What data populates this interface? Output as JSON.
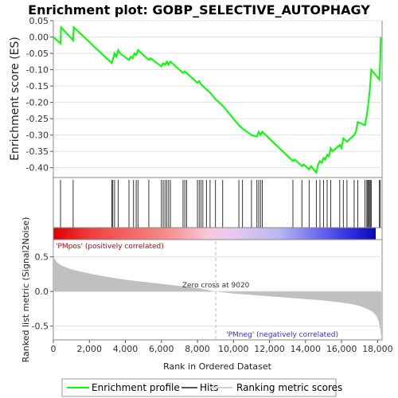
{
  "chart_data": {
    "type": "line",
    "title": "Enrichment plot: GOBP_SELECTIVE_AUTOPHAGY",
    "xlabel": "Rank in Ordered Dataset",
    "es_panel": {
      "ylabel": "Enrichment score (ES)",
      "ylim": [
        -0.43,
        0.05
      ],
      "yticks": [
        0.05,
        0.0,
        -0.05,
        -0.1,
        -0.15,
        -0.2,
        -0.25,
        -0.3,
        -0.35,
        -0.4
      ],
      "ytick_labels": [
        "0.05",
        "0.00",
        "-0.05",
        "-0.10",
        "-0.15",
        "-0.20",
        "-0.25",
        "-0.30",
        "-0.35",
        "-0.40"
      ],
      "series": [
        {
          "name": "Enrichment profile",
          "color": "#00ff00",
          "x": [
            0,
            400,
            430,
            1100,
            1130,
            3250,
            3300,
            3400,
            3500,
            3600,
            3700,
            4200,
            4300,
            4400,
            4500,
            4600,
            4700,
            5300,
            5400,
            6000,
            6100,
            6200,
            6300,
            6400,
            6500,
            7200,
            7300,
            7400,
            8000,
            8100,
            8200,
            8300,
            8500,
            8700,
            9000,
            9400,
            10300,
            10500,
            11000,
            11300,
            11400,
            11500,
            11600,
            13300,
            13400,
            13800,
            13900,
            14200,
            14300,
            14600,
            14700,
            14800,
            14900,
            15000,
            15100,
            15200,
            15300,
            15400,
            15500,
            15900,
            16000,
            16100,
            16300,
            16700,
            16800,
            16900,
            17300,
            17400,
            17450,
            17500,
            17550,
            17600,
            17650,
            18100,
            18150,
            18180
          ],
          "y": [
            0.0,
            -0.02,
            0.03,
            -0.01,
            0.03,
            -0.08,
            -0.07,
            -0.05,
            -0.06,
            -0.04,
            -0.05,
            -0.07,
            -0.06,
            -0.065,
            -0.05,
            -0.055,
            -0.04,
            -0.07,
            -0.065,
            -0.09,
            -0.08,
            -0.085,
            -0.075,
            -0.085,
            -0.075,
            -0.11,
            -0.105,
            -0.11,
            -0.14,
            -0.135,
            -0.145,
            -0.15,
            -0.16,
            -0.17,
            -0.19,
            -0.21,
            -0.27,
            -0.28,
            -0.3,
            -0.305,
            -0.29,
            -0.3,
            -0.29,
            -0.38,
            -0.375,
            -0.395,
            -0.39,
            -0.405,
            -0.395,
            -0.415,
            -0.39,
            -0.38,
            -0.385,
            -0.37,
            -0.375,
            -0.36,
            -0.365,
            -0.34,
            -0.35,
            -0.33,
            -0.34,
            -0.31,
            -0.32,
            -0.3,
            -0.29,
            -0.26,
            -0.27,
            -0.24,
            -0.22,
            -0.2,
            -0.17,
            -0.14,
            -0.1,
            -0.13,
            -0.07,
            0.0
          ]
        }
      ]
    },
    "hits": {
      "name": "Hits",
      "positions": [
        400,
        1100,
        3250,
        3300,
        3400,
        3600,
        4200,
        4450,
        4600,
        4700,
        5300,
        6000,
        6100,
        6200,
        6300,
        6400,
        6500,
        7200,
        7300,
        7400,
        8000,
        8100,
        8200,
        8300,
        8500,
        8700,
        9000,
        9400,
        10300,
        10500,
        11000,
        11300,
        11400,
        11500,
        11600,
        13300,
        13800,
        14200,
        14600,
        14800,
        15000,
        15200,
        15400,
        15900,
        16100,
        16300,
        16700,
        16900,
        17300,
        17400,
        17450,
        17500,
        17550,
        17600,
        17650,
        18100,
        18150
      ]
    },
    "ranked_metric": {
      "name": "Ranking metric scores",
      "ylabel": "Ranked list metric (Signal2Noise)",
      "ylim": [
        -0.7,
        0.75
      ],
      "yticks": [
        0.5,
        0.0,
        -0.5
      ],
      "ytick_labels": [
        "0.5",
        "0.0",
        "-0.5"
      ],
      "x": [
        0,
        50,
        200,
        500,
        1000,
        2000,
        3000,
        4000,
        5000,
        6000,
        7000,
        8000,
        9020,
        10000,
        11000,
        12000,
        13000,
        14000,
        15000,
        16000,
        16500,
        17000,
        17400,
        17700,
        17900,
        18050,
        18150,
        18200
      ],
      "y": [
        0.65,
        0.48,
        0.42,
        0.37,
        0.32,
        0.26,
        0.21,
        0.17,
        0.14,
        0.11,
        0.08,
        0.05,
        0.0,
        -0.03,
        -0.05,
        -0.07,
        -0.09,
        -0.11,
        -0.13,
        -0.16,
        -0.18,
        -0.21,
        -0.25,
        -0.29,
        -0.34,
        -0.42,
        -0.55,
        -0.65
      ],
      "zero_cross": 9020,
      "zero_cross_label": "Zero cross at 9020",
      "pos_label": "'PMpos' (positively correlated)",
      "neg_label": "'PMneg' (negatively correlated)"
    },
    "xlim": [
      0,
      18250
    ],
    "xticks": [
      0,
      2000,
      4000,
      6000,
      8000,
      10000,
      12000,
      14000,
      16000,
      18000
    ],
    "xtick_labels": [
      "0",
      "2,000",
      "4,000",
      "6,000",
      "8,000",
      "10,000",
      "12,000",
      "14,000",
      "16,000",
      "18,000"
    ],
    "legend": {
      "placement": "bottom",
      "entries": [
        {
          "label": "Enrichment profile",
          "color": "#00ff00",
          "kind": "line"
        },
        {
          "label": "Hits",
          "color": "#555555",
          "kind": "line"
        },
        {
          "label": "Ranking metric scores",
          "color": "#d0d0d0",
          "kind": "line"
        }
      ]
    },
    "colors": {
      "pos_label": "#cc0000",
      "neg_label": "#3333cc",
      "metric_fill": "#c0c0c0",
      "grid": "#e0e0e0"
    }
  }
}
